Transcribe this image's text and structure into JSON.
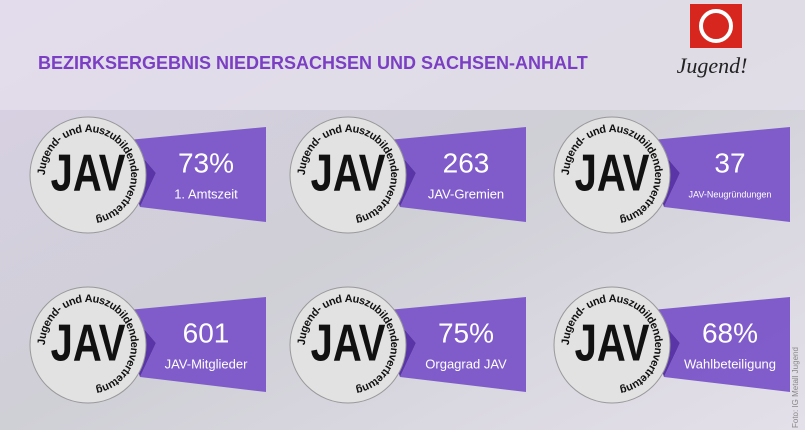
{
  "header": {
    "title": "BEZIRKSERGEBNIS NIEDERSACHSEN UND SACHSEN-ANHALT",
    "logo_text": "Jugend!"
  },
  "badge": {
    "ring_text": "Jugend- und Auszubildendenvertretung",
    "center_text": "JAV"
  },
  "tiles": [
    {
      "value": "73%",
      "label": "1. Amtszeit"
    },
    {
      "value": "263",
      "label": "JAV-Gremien"
    },
    {
      "value": "37",
      "label": "JAV-Neugründungen"
    },
    {
      "value": "601",
      "label": "JAV-Mitglieder"
    },
    {
      "value": "75%",
      "label": "Orgagrad JAV"
    },
    {
      "value": "68%",
      "label": "Wahlbeteiligung"
    }
  ],
  "credit": "Foto: IG Metall Jugend"
}
